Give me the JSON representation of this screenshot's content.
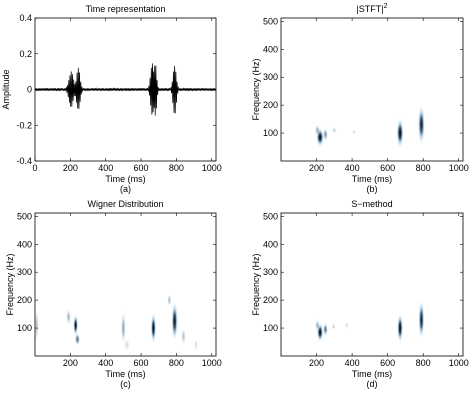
{
  "chart_data": [
    {
      "id": "a",
      "type": "line",
      "title": "Time representation",
      "xlabel": "Time (ms)",
      "ylabel": "Amplitude",
      "sublabel": "(a)",
      "xlim": [
        0,
        1024
      ],
      "ylim": [
        -0.4,
        0.4
      ],
      "xticks": [
        "0",
        "200",
        "400",
        "600",
        "800",
        "1000"
      ],
      "yticks": [
        "0.4",
        "0.2",
        "0",
        "-0.2",
        "-0.4"
      ],
      "grid": false,
      "bursts": [
        {
          "center_ms": 205,
          "peak_amplitude": 0.1,
          "width_ms": 25
        },
        {
          "center_ms": 245,
          "peak_amplitude": 0.12,
          "width_ms": 20
        },
        {
          "center_ms": 665,
          "peak_amplitude": 0.16,
          "width_ms": 20
        },
        {
          "center_ms": 680,
          "peak_amplitude": -0.17,
          "width_ms": 15
        },
        {
          "center_ms": 790,
          "peak_amplitude": 0.14,
          "width_ms": 18
        }
      ]
    },
    {
      "id": "b",
      "type": "heatmap",
      "title": "|STFT|",
      "title_superscript": "2",
      "xlabel": "Time (ms)",
      "ylabel": "Frequency (Hz)",
      "sublabel": "(b)",
      "xlim": [
        0,
        1024
      ],
      "ylim": [
        0,
        512
      ],
      "xticks": [
        "200",
        "400",
        "600",
        "800",
        "1000"
      ],
      "yticks": [
        "500",
        "400",
        "300",
        "200",
        "100"
      ],
      "blobs": [
        {
          "t": 220,
          "f": 85,
          "st": 14,
          "sf": 22,
          "v": 1.0
        },
        {
          "t": 205,
          "f": 110,
          "st": 10,
          "sf": 14,
          "v": 0.35
        },
        {
          "t": 250,
          "f": 95,
          "st": 10,
          "sf": 16,
          "v": 0.45
        },
        {
          "t": 300,
          "f": 110,
          "st": 10,
          "sf": 8,
          "v": 0.2
        },
        {
          "t": 410,
          "f": 105,
          "st": 8,
          "sf": 6,
          "v": 0.15
        },
        {
          "t": 670,
          "f": 100,
          "st": 13,
          "sf": 34,
          "v": 1.0
        },
        {
          "t": 790,
          "f": 130,
          "st": 13,
          "sf": 45,
          "v": 0.9
        }
      ]
    },
    {
      "id": "c",
      "type": "heatmap",
      "title": "Wigner Distribution",
      "xlabel": "Time (ms)",
      "ylabel": "Frequency (Hz)",
      "sublabel": "(c)",
      "xlim": [
        0,
        1024
      ],
      "ylim": [
        0,
        512
      ],
      "xticks": [
        "200",
        "400",
        "600",
        "800",
        "1000"
      ],
      "yticks": [
        "500",
        "400",
        "300",
        "200",
        "100"
      ],
      "blobs": [
        {
          "t": 230,
          "f": 110,
          "st": 9,
          "sf": 25,
          "v": 1.0
        },
        {
          "t": 240,
          "f": 60,
          "st": 10,
          "sf": 15,
          "v": 0.6
        },
        {
          "t": 190,
          "f": 140,
          "st": 10,
          "sf": 20,
          "v": 0.3
        },
        {
          "t": 10,
          "f": 110,
          "st": 8,
          "sf": 40,
          "v": 0.25
        },
        {
          "t": 500,
          "f": 100,
          "st": 10,
          "sf": 40,
          "v": 0.35
        },
        {
          "t": 520,
          "f": 40,
          "st": 12,
          "sf": 15,
          "v": 0.15
        },
        {
          "t": 670,
          "f": 100,
          "st": 10,
          "sf": 35,
          "v": 1.0
        },
        {
          "t": 790,
          "f": 125,
          "st": 12,
          "sf": 45,
          "v": 0.95
        },
        {
          "t": 760,
          "f": 200,
          "st": 8,
          "sf": 15,
          "v": 0.3
        },
        {
          "t": 840,
          "f": 70,
          "st": 10,
          "sf": 20,
          "v": 0.25
        },
        {
          "t": 910,
          "f": 40,
          "st": 8,
          "sf": 15,
          "v": 0.15
        }
      ]
    },
    {
      "id": "d",
      "type": "heatmap",
      "title": "S−method",
      "xlabel": "Time (ms)",
      "ylabel": "Frequency (Hz)",
      "sublabel": "(d)",
      "xlim": [
        0,
        1024
      ],
      "ylim": [
        0,
        512
      ],
      "xticks": [
        "200",
        "400",
        "600",
        "800",
        "1000"
      ],
      "yticks": [
        "500",
        "400",
        "300",
        "200",
        "100"
      ],
      "blobs": [
        {
          "t": 220,
          "f": 85,
          "st": 12,
          "sf": 22,
          "v": 1.0
        },
        {
          "t": 205,
          "f": 110,
          "st": 9,
          "sf": 14,
          "v": 0.35
        },
        {
          "t": 250,
          "f": 95,
          "st": 9,
          "sf": 16,
          "v": 0.6
        },
        {
          "t": 295,
          "f": 105,
          "st": 9,
          "sf": 8,
          "v": 0.2
        },
        {
          "t": 370,
          "f": 110,
          "st": 8,
          "sf": 8,
          "v": 0.15
        },
        {
          "t": 670,
          "f": 100,
          "st": 11,
          "sf": 34,
          "v": 1.0
        },
        {
          "t": 790,
          "f": 130,
          "st": 11,
          "sf": 45,
          "v": 0.9
        }
      ]
    }
  ]
}
